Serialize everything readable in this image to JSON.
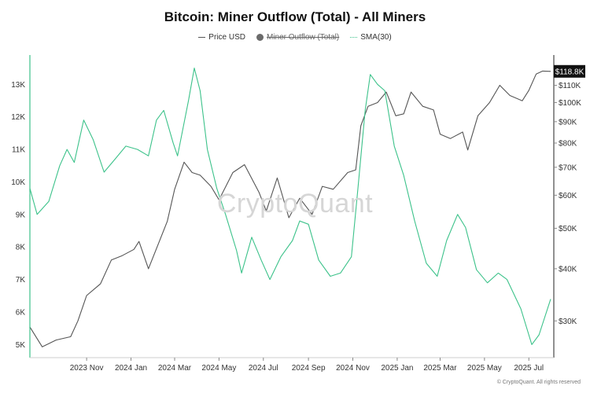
{
  "chart_data": {
    "type": "line",
    "title": "Bitcoin: Miner Outflow (Total) - All Miners",
    "legend": {
      "placement": "top-center",
      "items": [
        {
          "label": "Price USD",
          "style": "solid-line",
          "color": "#555555",
          "hidden": false
        },
        {
          "label": "Miner Outflow (Total)",
          "style": "dot",
          "color": "#6b6b6b",
          "hidden": true
        },
        {
          "label": "SMA(30)",
          "style": "dotted-line",
          "color": "#3cc28a",
          "hidden": false
        }
      ]
    },
    "x_axis": {
      "range": [
        "2023-08-15",
        "2025-07-31"
      ],
      "ticks": [
        {
          "date": "2023-11-01",
          "label": "2023 Nov"
        },
        {
          "date": "2024-01-01",
          "label": "2024 Jan"
        },
        {
          "date": "2024-03-01",
          "label": "2024 Mar"
        },
        {
          "date": "2024-05-01",
          "label": "2024 May"
        },
        {
          "date": "2024-07-01",
          "label": "2024 Jul"
        },
        {
          "date": "2024-09-01",
          "label": "2024 Sep"
        },
        {
          "date": "2024-11-01",
          "label": "2024 Nov"
        },
        {
          "date": "2025-01-01",
          "label": "2025 Jan"
        },
        {
          "date": "2025-03-01",
          "label": "2025 Mar"
        },
        {
          "date": "2025-05-01",
          "label": "2025 May"
        },
        {
          "date": "2025-07-01",
          "label": "2025 Jul"
        }
      ]
    },
    "y_left": {
      "range": [
        4600,
        13900
      ],
      "ticks": [
        {
          "value": 5000,
          "label": "5K"
        },
        {
          "value": 6000,
          "label": "6K"
        },
        {
          "value": 7000,
          "label": "7K"
        },
        {
          "value": 8000,
          "label": "8K"
        },
        {
          "value": 9000,
          "label": "9K"
        },
        {
          "value": 10000,
          "label": "10K"
        },
        {
          "value": 11000,
          "label": "11K"
        },
        {
          "value": 12000,
          "label": "12K"
        },
        {
          "value": 13000,
          "label": "13K"
        }
      ]
    },
    "y_right": {
      "scale": "log",
      "range": [
        24500,
        130000
      ],
      "ticks": [
        {
          "value": 30000,
          "label": "$30K"
        },
        {
          "value": 40000,
          "label": "$40K"
        },
        {
          "value": 50000,
          "label": "$50K"
        },
        {
          "value": 60000,
          "label": "$60K"
        },
        {
          "value": 70000,
          "label": "$70K"
        },
        {
          "value": 80000,
          "label": "$80K"
        },
        {
          "value": 90000,
          "label": "$90K"
        },
        {
          "value": 100000,
          "label": "$100K"
        },
        {
          "value": 110000,
          "label": "$110K"
        }
      ],
      "last_value": {
        "value": 118800,
        "label": "$118.8K"
      }
    },
    "grid": false,
    "series": [
      {
        "name": "Price USD",
        "axis": "right",
        "color": "#555555",
        "points": [
          [
            "2023-08-15",
            29000
          ],
          [
            "2023-09-01",
            26000
          ],
          [
            "2023-09-20",
            27000
          ],
          [
            "2023-10-10",
            27500
          ],
          [
            "2023-10-20",
            30000
          ],
          [
            "2023-11-01",
            34500
          ],
          [
            "2023-11-20",
            36800
          ],
          [
            "2023-12-05",
            42000
          ],
          [
            "2023-12-20",
            43000
          ],
          [
            "2024-01-05",
            44500
          ],
          [
            "2024-01-12",
            46500
          ],
          [
            "2024-01-25",
            40000
          ],
          [
            "2024-02-10",
            47000
          ],
          [
            "2024-02-20",
            52000
          ],
          [
            "2024-03-01",
            62000
          ],
          [
            "2024-03-14",
            72000
          ],
          [
            "2024-03-25",
            68000
          ],
          [
            "2024-04-05",
            67000
          ],
          [
            "2024-04-20",
            63000
          ],
          [
            "2024-05-01",
            58500
          ],
          [
            "2024-05-20",
            68000
          ],
          [
            "2024-06-05",
            71000
          ],
          [
            "2024-06-25",
            61000
          ],
          [
            "2024-07-05",
            55000
          ],
          [
            "2024-07-20",
            66000
          ],
          [
            "2024-08-05",
            53000
          ],
          [
            "2024-08-20",
            59000
          ],
          [
            "2024-09-06",
            54000
          ],
          [
            "2024-09-20",
            63000
          ],
          [
            "2024-10-05",
            62000
          ],
          [
            "2024-10-25",
            68000
          ],
          [
            "2024-11-05",
            69000
          ],
          [
            "2024-11-12",
            88000
          ],
          [
            "2024-11-22",
            98000
          ],
          [
            "2024-12-05",
            100000
          ],
          [
            "2024-12-17",
            106000
          ],
          [
            "2024-12-30",
            93000
          ],
          [
            "2025-01-10",
            94000
          ],
          [
            "2025-01-20",
            106000
          ],
          [
            "2025-02-05",
            98000
          ],
          [
            "2025-02-20",
            96000
          ],
          [
            "2025-03-01",
            84000
          ],
          [
            "2025-03-15",
            82000
          ],
          [
            "2025-04-01",
            85000
          ],
          [
            "2025-04-08",
            77000
          ],
          [
            "2025-04-22",
            93000
          ],
          [
            "2025-05-08",
            100000
          ],
          [
            "2025-05-22",
            110000
          ],
          [
            "2025-06-05",
            104000
          ],
          [
            "2025-06-22",
            101000
          ],
          [
            "2025-07-01",
            107000
          ],
          [
            "2025-07-11",
            117000
          ],
          [
            "2025-07-20",
            119000
          ],
          [
            "2025-07-31",
            118800
          ]
        ]
      },
      {
        "name": "SMA(30)",
        "axis": "left",
        "color": "#3cc28a",
        "points": [
          [
            "2023-08-15",
            9800
          ],
          [
            "2023-08-25",
            9000
          ],
          [
            "2023-09-10",
            9400
          ],
          [
            "2023-09-25",
            10500
          ],
          [
            "2023-10-05",
            11000
          ],
          [
            "2023-10-15",
            10600
          ],
          [
            "2023-10-28",
            11900
          ],
          [
            "2023-11-10",
            11300
          ],
          [
            "2023-11-25",
            10300
          ],
          [
            "2023-12-10",
            10700
          ],
          [
            "2023-12-25",
            11100
          ],
          [
            "2024-01-10",
            11000
          ],
          [
            "2024-01-25",
            10800
          ],
          [
            "2024-02-05",
            11900
          ],
          [
            "2024-02-15",
            12200
          ],
          [
            "2024-02-28",
            11200
          ],
          [
            "2024-03-05",
            10800
          ],
          [
            "2024-03-20",
            12500
          ],
          [
            "2024-03-28",
            13500
          ],
          [
            "2024-04-05",
            12800
          ],
          [
            "2024-04-15",
            11000
          ],
          [
            "2024-04-28",
            9800
          ],
          [
            "2024-05-10",
            9000
          ],
          [
            "2024-05-25",
            7900
          ],
          [
            "2024-06-01",
            7200
          ],
          [
            "2024-06-15",
            8300
          ],
          [
            "2024-06-28",
            7600
          ],
          [
            "2024-07-10",
            7000
          ],
          [
            "2024-07-25",
            7700
          ],
          [
            "2024-08-10",
            8200
          ],
          [
            "2024-08-20",
            8800
          ],
          [
            "2024-09-01",
            8700
          ],
          [
            "2024-09-15",
            7600
          ],
          [
            "2024-10-01",
            7100
          ],
          [
            "2024-10-15",
            7200
          ],
          [
            "2024-10-30",
            7700
          ],
          [
            "2024-11-08",
            9800
          ],
          [
            "2024-11-18",
            12200
          ],
          [
            "2024-11-25",
            13300
          ],
          [
            "2024-12-05",
            13000
          ],
          [
            "2024-12-15",
            12800
          ],
          [
            "2024-12-28",
            11100
          ],
          [
            "2025-01-10",
            10200
          ],
          [
            "2025-01-25",
            8800
          ],
          [
            "2025-02-10",
            7500
          ],
          [
            "2025-02-25",
            7100
          ],
          [
            "2025-03-10",
            8200
          ],
          [
            "2025-03-25",
            9000
          ],
          [
            "2025-04-05",
            8600
          ],
          [
            "2025-04-20",
            7300
          ],
          [
            "2025-05-05",
            6900
          ],
          [
            "2025-05-20",
            7200
          ],
          [
            "2025-06-01",
            7000
          ],
          [
            "2025-06-20",
            6100
          ],
          [
            "2025-07-05",
            5000
          ],
          [
            "2025-07-15",
            5300
          ],
          [
            "2025-07-31",
            6400
          ]
        ]
      }
    ]
  },
  "watermark": "CryptoQuant",
  "copyright": "© CryptoQuant. All rights reserved"
}
